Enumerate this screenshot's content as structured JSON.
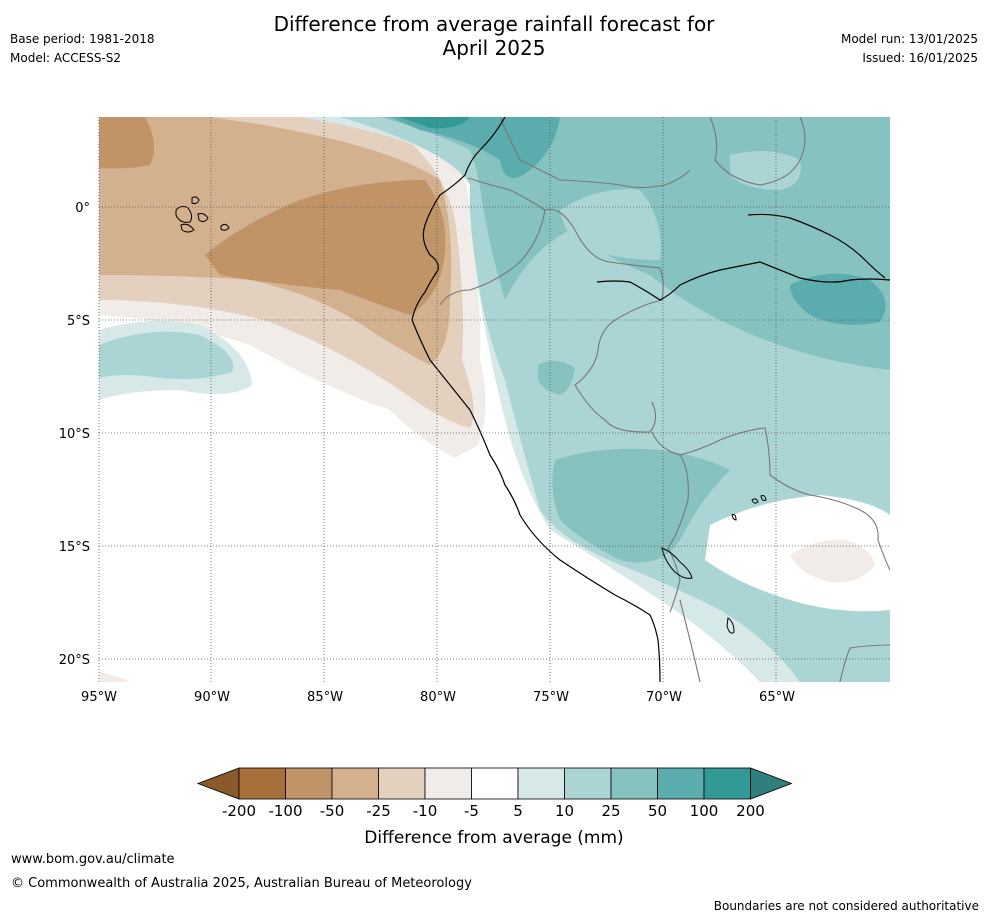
{
  "header": {
    "title_line1": "Difference from average rainfall forecast for",
    "title_line2": "April 2025",
    "base_period": "Base period: 1981-2018",
    "model": "Model: ACCESS-S2",
    "model_run": "Model run: 13/01/2025",
    "issued": "Issued: 16/01/2025"
  },
  "map": {
    "lat_labels": [
      "0°",
      "5°S",
      "10°S",
      "15°S",
      "20°S"
    ],
    "lon_labels": [
      "95°W",
      "90°W",
      "85°W",
      "80°W",
      "75°W",
      "70°W",
      "65°W"
    ],
    "colors": {
      "ocean_dry_1": "#f1ece8",
      "ocean_dry_2": "#e4d0bf",
      "ocean_dry_3": "#d3b08e",
      "ocean_dry_4": "#c19468",
      "wet_1": "#d6e9e8",
      "wet_2": "#abd5d4",
      "wet_3": "#85c2c0",
      "wet_4": "#5aadac"
    }
  },
  "colorbar": {
    "labels": [
      "-200",
      "-100",
      "-50",
      "-25",
      "-10",
      "-5",
      "5",
      "10",
      "25",
      "50",
      "100",
      "200"
    ],
    "colors": [
      "#a7703b",
      "#c19468",
      "#d3b08e",
      "#e4d0bf",
      "#f1ece8",
      "#ffffff",
      "#d6e9e8",
      "#abd5d4",
      "#85c2c0",
      "#5aadac",
      "#339995"
    ],
    "low_extension_color": "#8a5a2b",
    "high_extension_color": "#2f7f7c",
    "title": "Difference from average (mm)"
  },
  "footer": {
    "url": "www.bom.gov.au/climate",
    "copyright": "© Commonwealth of Australia 2025, Australian Bureau of Meteorology",
    "disclaimer": "Boundaries are not considered authoritative"
  }
}
